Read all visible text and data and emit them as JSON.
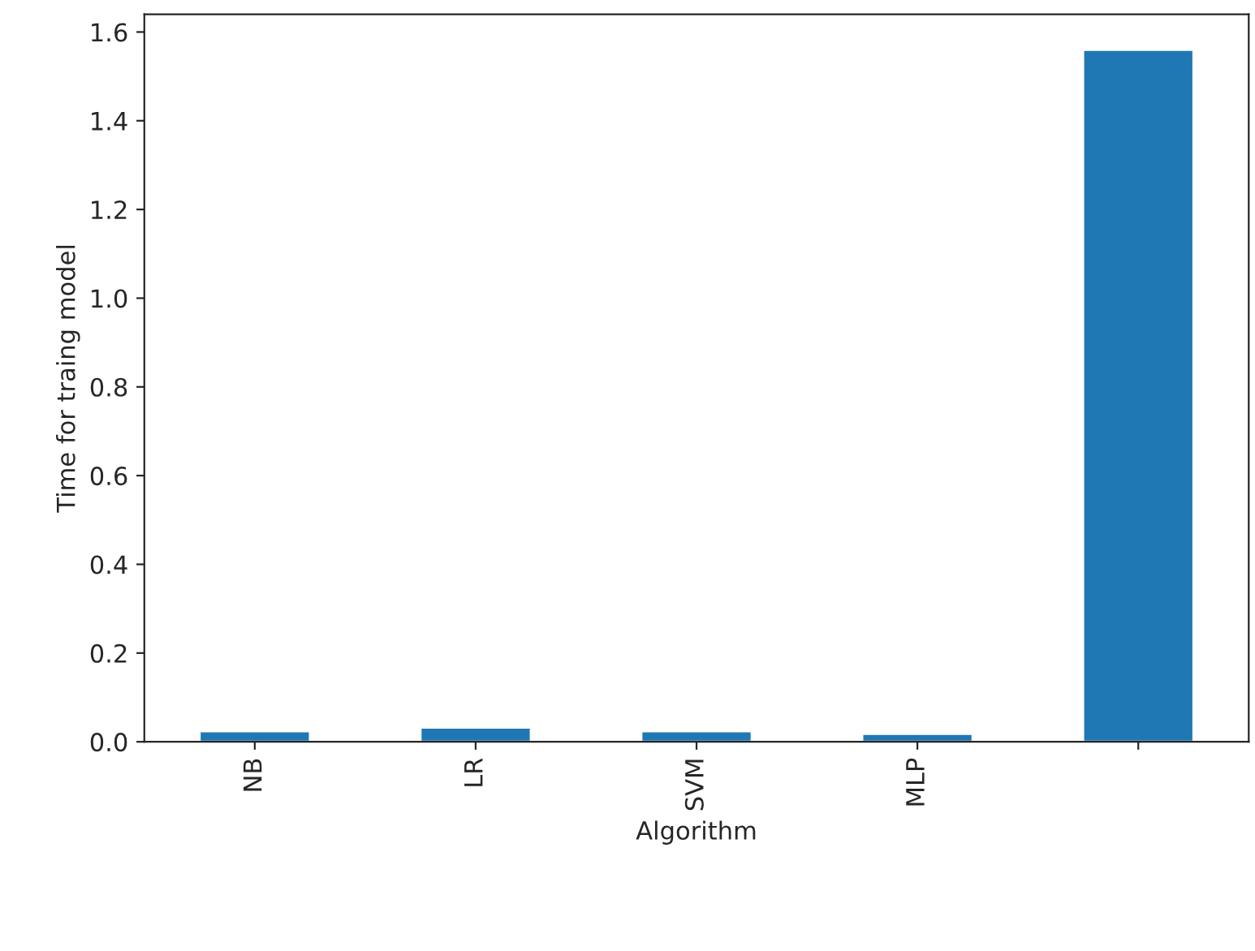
{
  "chart_data": {
    "type": "bar",
    "xlabel": "Algorithm",
    "ylabel": "Time for traing model",
    "categories": [
      "NB",
      "LR",
      "SVM",
      "MLP",
      null
    ],
    "values": [
      0.024,
      0.032,
      0.024,
      0.018,
      1.56
    ],
    "color": "#1f77b4",
    "ylim": [
      0,
      1.64
    ],
    "yticks": [
      {
        "value": 0,
        "label": "0.0"
      },
      0.2,
      0.4,
      0.6,
      0.8,
      {
        "value": 1,
        "label": "1.0"
      },
      1.2,
      1.4,
      1.6
    ],
    "grid": false,
    "legend": false
  }
}
